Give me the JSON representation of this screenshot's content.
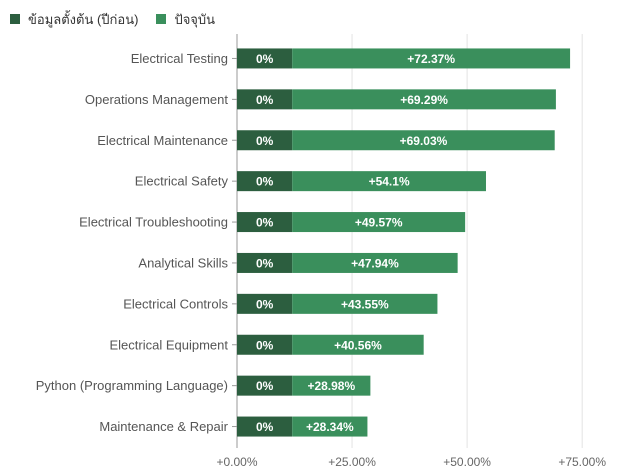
{
  "legend": {
    "baseline_label": "ข้อมูลตั้งต้น (ปีก่อน)",
    "current_label": "ปัจจุบัน"
  },
  "colors": {
    "baseline": "#2c5e3f",
    "current": "#3a8f5c",
    "grid": "#e3e3e3",
    "axis": "#9a9a9a"
  },
  "chart_data": {
    "type": "bar",
    "orientation": "horizontal",
    "categories": [
      "Electrical Testing",
      "Operations Management",
      "Electrical Maintenance",
      "Electrical Safety",
      "Electrical Troubleshooting",
      "Analytical Skills",
      "Electrical Controls",
      "Electrical Equipment",
      "Python (Programming Language)",
      "Maintenance & Repair"
    ],
    "series": [
      {
        "name": "ข้อมูลตั้งต้น (ปีก่อน)",
        "values": [
          0,
          0,
          0,
          0,
          0,
          0,
          0,
          0,
          0,
          0
        ],
        "labels": [
          "0%",
          "0%",
          "0%",
          "0%",
          "0%",
          "0%",
          "0%",
          "0%",
          "0%",
          "0%"
        ]
      },
      {
        "name": "ปัจจุบัน",
        "values": [
          72.37,
          69.29,
          69.03,
          54.1,
          49.57,
          47.94,
          43.55,
          40.56,
          28.98,
          28.34
        ],
        "labels": [
          "+72.37%",
          "+69.29%",
          "+69.03%",
          "+54.1%",
          "+49.57%",
          "+47.94%",
          "+43.55%",
          "+40.56%",
          "+28.98%",
          "+28.34%"
        ]
      }
    ],
    "xlim": [
      0,
      83
    ],
    "xticks": [
      0,
      25,
      50,
      75
    ],
    "xtick_labels": [
      "+0.00%",
      "+25.00%",
      "+50.00%",
      "+75.00%"
    ],
    "grid": true,
    "legend_position": "top-left",
    "baseline_segment_width": 12
  }
}
